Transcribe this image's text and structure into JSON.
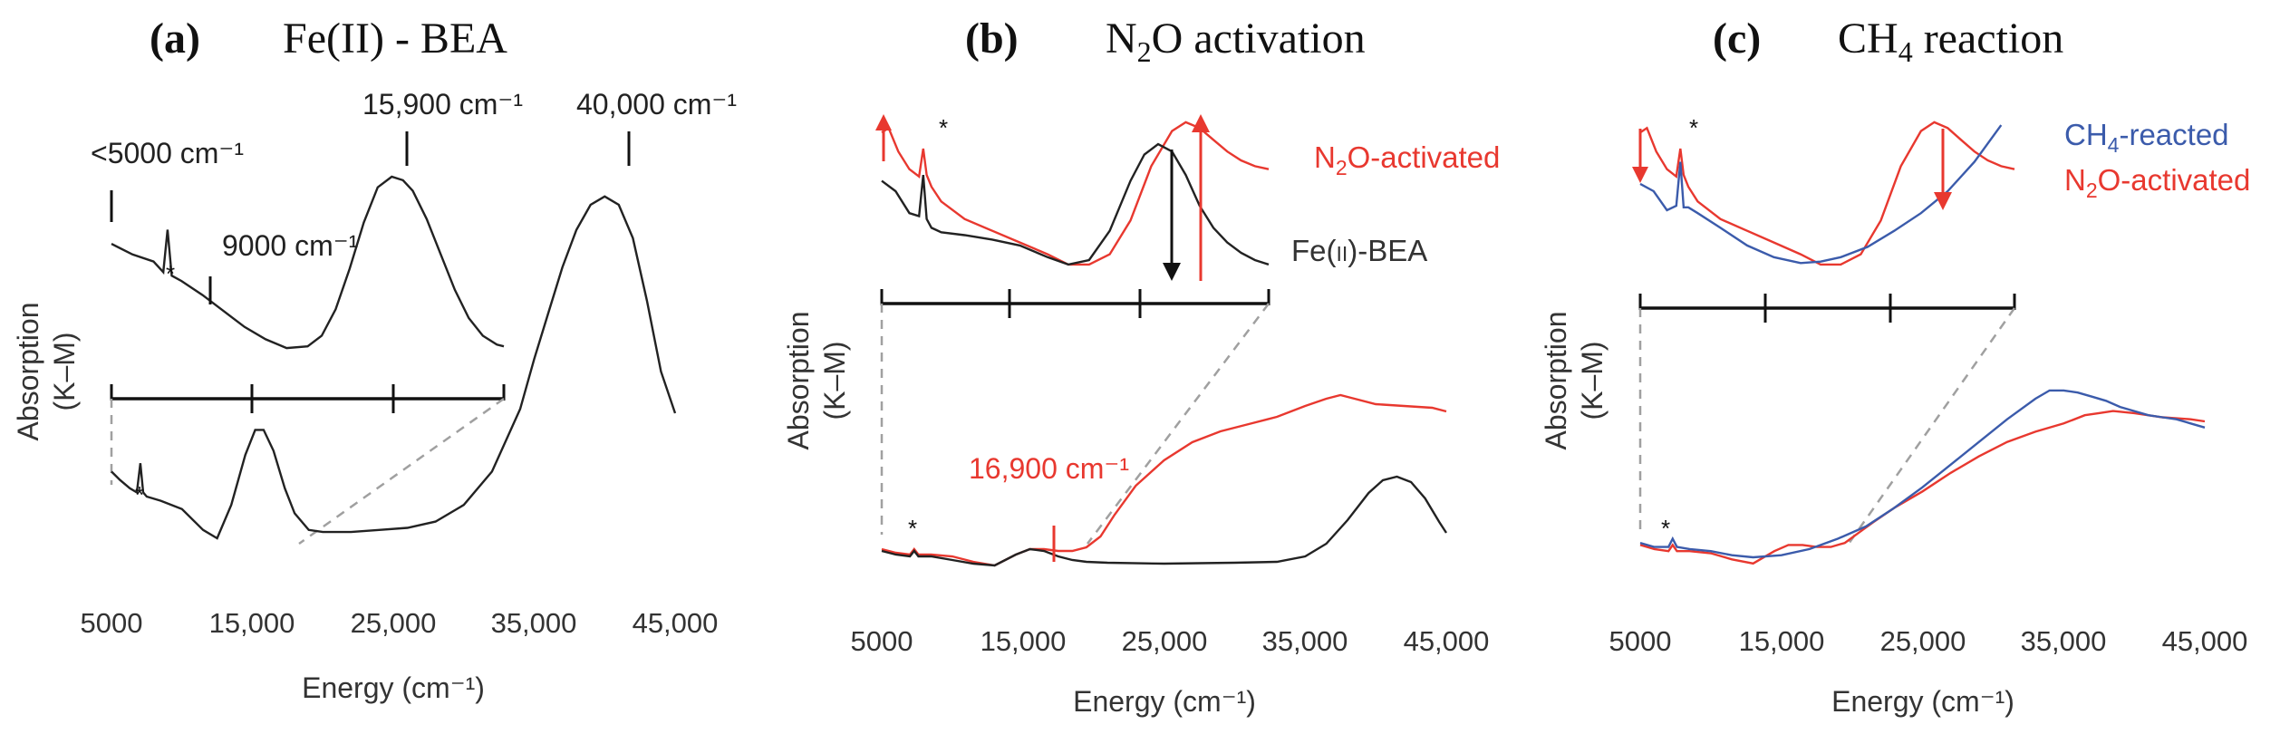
{
  "chart_data": [
    {
      "type": "line",
      "panel_label": "(a)",
      "title": "Fe(II) - BEA",
      "xlabel": "Energy (cm⁻¹)",
      "ylabel": "Absorption (K–M)",
      "xlim": [
        5000,
        45000
      ],
      "ylim": [
        0,
        1
      ],
      "xticks": [
        5000,
        15000,
        25000,
        35000,
        45000
      ],
      "xtick_labels": [
        "5000",
        "15,000",
        "25,000",
        "35,000",
        "45,000"
      ],
      "series": [
        {
          "name": "Fe(II)-BEA",
          "color": "#222222",
          "x": [
            5000,
            5600,
            6300,
            6800,
            7050,
            7250,
            7500,
            8500,
            10000,
            11500,
            12500,
            13500,
            14500,
            15200,
            15800,
            16500,
            17300,
            18000,
            19000,
            20000,
            22000,
            24000,
            26000,
            28000,
            30000,
            32000,
            34000,
            35000,
            36000,
            37000,
            38000,
            39000,
            40000,
            41000,
            42000,
            43000,
            44000,
            45000
          ],
          "y": [
            0.26,
            0.24,
            0.22,
            0.21,
            0.28,
            0.21,
            0.2,
            0.19,
            0.17,
            0.12,
            0.1,
            0.18,
            0.3,
            0.36,
            0.36,
            0.31,
            0.22,
            0.16,
            0.12,
            0.115,
            0.115,
            0.12,
            0.125,
            0.14,
            0.18,
            0.26,
            0.41,
            0.53,
            0.64,
            0.75,
            0.84,
            0.9,
            0.92,
            0.9,
            0.82,
            0.67,
            0.5,
            0.4
          ]
        }
      ],
      "inset": {
        "x": [
          5000,
          6500,
          8000,
          8700,
          9000,
          9300,
          10000,
          11500,
          13000,
          14500,
          16000,
          17500,
          19000,
          20000,
          21000,
          22000,
          23000,
          24000,
          25000,
          25800,
          26500,
          27500,
          28500,
          29500,
          30500,
          31500,
          32500,
          33000
        ],
        "y": [
          0.62,
          0.56,
          0.52,
          0.46,
          0.7,
          0.44,
          0.41,
          0.33,
          0.24,
          0.15,
          0.08,
          0.03,
          0.04,
          0.1,
          0.25,
          0.48,
          0.74,
          0.94,
          1.0,
          0.98,
          0.92,
          0.76,
          0.56,
          0.36,
          0.2,
          0.1,
          0.05,
          0.04
        ],
        "xlim": [
          5000,
          33000
        ]
      },
      "annotations": [
        "<5000 cm⁻¹",
        "9000 cm⁻¹",
        "15,900 cm⁻¹",
        "40,000 cm⁻¹",
        "*",
        "*"
      ]
    },
    {
      "type": "line",
      "panel_label": "(b)",
      "title_main": "N",
      "title_sub": "2",
      "title_rest": "O activation",
      "xlabel": "Energy (cm⁻¹)",
      "ylabel": "Absorption (K–M)",
      "xlim": [
        5000,
        45000
      ],
      "ylim": [
        0,
        1
      ],
      "xticks": [
        5000,
        15000,
        25000,
        35000,
        45000
      ],
      "xtick_labels": [
        "5000",
        "15,000",
        "25,000",
        "35,000",
        "45,000"
      ],
      "series": [
        {
          "name": "N2O-activated",
          "color": "#e8382f",
          "x": [
            5000,
            6000,
            7000,
            7300,
            7600,
            8500,
            10000,
            11500,
            13000,
            14500,
            15500,
            16500,
            17500,
            18500,
            19500,
            20500,
            21500,
            23000,
            25000,
            27000,
            29000,
            31000,
            33000,
            35000,
            36500,
            37500,
            38500,
            40000,
            42000,
            44000,
            45000
          ],
          "y": [
            0.07,
            0.05,
            0.04,
            0.07,
            0.04,
            0.04,
            0.03,
            0.0,
            -0.02,
            0.04,
            0.07,
            0.07,
            0.06,
            0.06,
            0.08,
            0.14,
            0.26,
            0.42,
            0.56,
            0.66,
            0.72,
            0.76,
            0.8,
            0.86,
            0.9,
            0.92,
            0.9,
            0.87,
            0.86,
            0.85,
            0.83
          ]
        },
        {
          "name": "Fe(II)-BEA",
          "color": "#222222",
          "x": [
            5000,
            6000,
            7000,
            7300,
            7600,
            8500,
            10000,
            11500,
            13000,
            14500,
            15500,
            16500,
            17500,
            18500,
            19500,
            21000,
            25000,
            30000,
            33000,
            35000,
            36500,
            38000,
            39500,
            40500,
            41500,
            42500,
            43500,
            44500,
            45000
          ],
          "y": [
            0.06,
            0.04,
            0.03,
            0.06,
            0.03,
            0.03,
            0.01,
            -0.01,
            -0.02,
            0.04,
            0.07,
            0.06,
            0.03,
            0.01,
            0.0,
            -0.005,
            -0.01,
            -0.005,
            0.0,
            0.03,
            0.1,
            0.23,
            0.38,
            0.45,
            0.47,
            0.44,
            0.35,
            0.22,
            0.16
          ]
        }
      ],
      "inset_series": [
        {
          "name": "N2O-activated",
          "x": [
            5000,
            5500,
            6200,
            7000,
            7700,
            8000,
            8250,
            8600,
            9300,
            11000,
            13000,
            15000,
            17000,
            18500,
            20000,
            21500,
            23000,
            24500,
            26000,
            27000,
            28000,
            29000,
            30000,
            31000,
            32000,
            33000
          ],
          "y": [
            0.95,
            0.98,
            0.82,
            0.7,
            0.65,
            0.84,
            0.66,
            0.58,
            0.48,
            0.36,
            0.28,
            0.2,
            0.12,
            0.05,
            0.05,
            0.12,
            0.35,
            0.72,
            0.96,
            1.02,
            0.98,
            0.9,
            0.82,
            0.76,
            0.72,
            0.7
          ]
        },
        {
          "name": "Fe(II)-BEA",
          "x": [
            5000,
            6000,
            7000,
            7700,
            8000,
            8250,
            8600,
            9300,
            11000,
            13000,
            15000,
            17000,
            18500,
            20000,
            21500,
            23000,
            24000,
            25000,
            26000,
            27000,
            28000,
            29000,
            30000,
            31000,
            32000,
            33000
          ],
          "y": [
            0.62,
            0.55,
            0.4,
            0.38,
            0.66,
            0.36,
            0.3,
            0.27,
            0.25,
            0.22,
            0.18,
            0.1,
            0.05,
            0.08,
            0.28,
            0.62,
            0.8,
            0.87,
            0.82,
            0.66,
            0.45,
            0.3,
            0.2,
            0.13,
            0.08,
            0.05
          ]
        }
      ],
      "legend": [
        {
          "main": "N",
          "sub": "2",
          "rest": "O-activated",
          "color": "#e8382f"
        },
        {
          "main": "Fe(",
          "sub": "II",
          "rest": ")-BEA",
          "color": "#333333"
        }
      ],
      "annotations": [
        "16,900 cm⁻¹",
        "*",
        "*"
      ]
    },
    {
      "type": "line",
      "panel_label": "(c)",
      "title_main": "CH",
      "title_sub": "4",
      "title_rest": " reaction",
      "xlabel": "Energy (cm⁻¹)",
      "ylabel": "Absorption (K–M)",
      "xlim": [
        5000,
        45000
      ],
      "ylim": [
        0,
        1
      ],
      "xticks": [
        5000,
        15000,
        25000,
        35000,
        45000
      ],
      "xtick_labels": [
        "5000",
        "15,000",
        "25,000",
        "35,000",
        "45,000"
      ],
      "series": [
        {
          "name": "CH4-reacted",
          "color": "#3b5bab",
          "x": [
            5000,
            6000,
            7000,
            7300,
            7600,
            8500,
            10000,
            11500,
            13000,
            15000,
            17000,
            19000,
            21000,
            23000,
            25000,
            27000,
            29000,
            31000,
            33000,
            34000,
            35000,
            36000,
            37000,
            38000,
            39000,
            40000,
            41000,
            42000,
            43000,
            44000,
            45000
          ],
          "y": [
            0.08,
            0.06,
            0.06,
            0.1,
            0.06,
            0.05,
            0.04,
            0.02,
            0.01,
            0.02,
            0.05,
            0.1,
            0.16,
            0.25,
            0.35,
            0.46,
            0.57,
            0.68,
            0.78,
            0.82,
            0.82,
            0.81,
            0.79,
            0.77,
            0.74,
            0.72,
            0.7,
            0.69,
            0.68,
            0.66,
            0.64
          ]
        },
        {
          "name": "N2O-activated",
          "color": "#e8382f",
          "x": [
            5000,
            6000,
            7000,
            7300,
            7600,
            8500,
            10000,
            11500,
            13000,
            14500,
            15500,
            16500,
            17500,
            18500,
            19500,
            20500,
            21500,
            23000,
            25000,
            27000,
            29000,
            31000,
            33000,
            35000,
            36500,
            37500,
            38500,
            40000,
            42000,
            44000,
            45000
          ],
          "y": [
            0.07,
            0.05,
            0.04,
            0.07,
            0.04,
            0.04,
            0.03,
            0.0,
            -0.02,
            0.04,
            0.07,
            0.07,
            0.06,
            0.06,
            0.08,
            0.13,
            0.18,
            0.25,
            0.33,
            0.42,
            0.5,
            0.57,
            0.62,
            0.66,
            0.7,
            0.71,
            0.72,
            0.71,
            0.69,
            0.68,
            0.67
          ]
        }
      ],
      "inset_series": [
        {
          "name": "CH4-reacted",
          "x": [
            5000,
            6000,
            7000,
            7700,
            8000,
            8250,
            8600,
            9300,
            11000,
            13000,
            15000,
            17000,
            18500,
            20000,
            22000,
            24000,
            26000,
            28000,
            30000,
            32000
          ],
          "y": [
            0.6,
            0.55,
            0.42,
            0.45,
            0.75,
            0.44,
            0.44,
            0.4,
            0.3,
            0.18,
            0.1,
            0.06,
            0.07,
            0.1,
            0.17,
            0.28,
            0.4,
            0.55,
            0.75,
            1.0
          ]
        },
        {
          "name": "N2O-activated",
          "x": [
            5000,
            5500,
            6200,
            7000,
            7700,
            8000,
            8250,
            8600,
            9300,
            11000,
            13000,
            15000,
            17000,
            18500,
            20000,
            21500,
            23000,
            24500,
            26000,
            27000,
            28000,
            29000,
            30000,
            31000,
            32000,
            33000
          ],
          "y": [
            0.95,
            0.98,
            0.82,
            0.7,
            0.65,
            0.84,
            0.66,
            0.58,
            0.48,
            0.36,
            0.28,
            0.2,
            0.12,
            0.05,
            0.05,
            0.12,
            0.35,
            0.72,
            0.96,
            1.02,
            0.98,
            0.9,
            0.82,
            0.76,
            0.72,
            0.7
          ]
        }
      ],
      "legend": [
        {
          "main": "CH",
          "sub": "4",
          "rest": "-reacted",
          "color": "#3b5bab"
        },
        {
          "main": "N",
          "sub": "2",
          "rest": "O-activated",
          "color": "#e8382f"
        }
      ],
      "annotations": [
        "*",
        "*"
      ]
    }
  ]
}
